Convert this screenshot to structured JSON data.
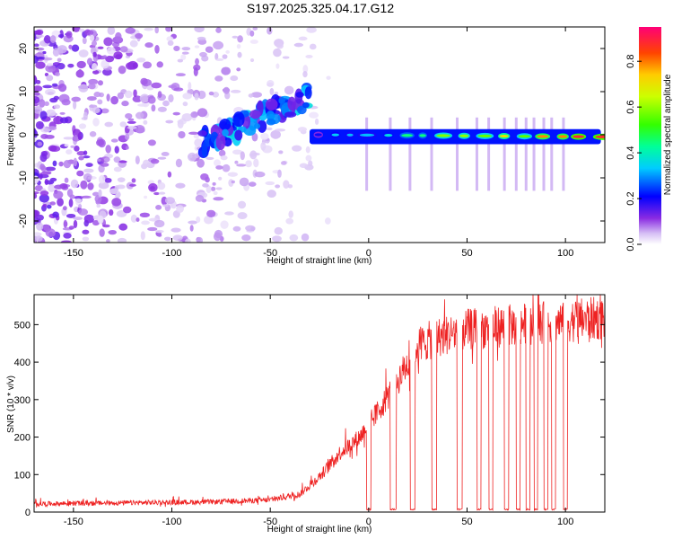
{
  "title": "S197.2025.325.04.17.G12",
  "chart_data": [
    {
      "type": "heatmap",
      "name": "spectrogram",
      "xlabel": "Height of straight line (km)",
      "ylabel": "Frequency (Hz)",
      "xlim": [
        -170,
        120
      ],
      "ylim": [
        -25,
        25
      ],
      "xticks": [
        -150,
        -100,
        -50,
        0,
        50,
        100
      ],
      "yticks": [
        -20,
        -10,
        0,
        10,
        20
      ],
      "colorbar": {
        "label": "Normalized spectral amplitude",
        "range": [
          0,
          0.95
        ],
        "ticks": [
          0.0,
          0.2,
          0.4,
          0.6,
          0.8
        ]
      },
      "tone_segments": [
        {
          "x_start": -85,
          "x_end": -30,
          "freq_start": -2,
          "freq_end": 9,
          "amplitude": 0.25
        },
        {
          "x_start": -30,
          "x_end": 118,
          "freq_start": 0,
          "freq_end": -0.5,
          "amplitude": 0.95
        }
      ],
      "noise_region": {
        "x_start": -170,
        "x_end": -30,
        "freq_min": -25,
        "freq_max": 25,
        "amplitude": 0.1
      }
    },
    {
      "type": "line",
      "name": "snr",
      "xlabel": "Height of straight line (km)",
      "ylabel": "SNR (10 * v/v)",
      "xlim": [
        -170,
        120
      ],
      "ylim": [
        0,
        580
      ],
      "xticks": [
        -150,
        -100,
        -50,
        0,
        50,
        100
      ],
      "yticks": [
        0,
        100,
        200,
        300,
        400,
        500
      ],
      "color": "#ee2222",
      "anchors": [
        {
          "x": -170,
          "y": 20
        },
        {
          "x": -80,
          "y": 25
        },
        {
          "x": -50,
          "y": 30
        },
        {
          "x": -35,
          "y": 45
        },
        {
          "x": -25,
          "y": 90
        },
        {
          "x": -15,
          "y": 150
        },
        {
          "x": -5,
          "y": 190
        },
        {
          "x": 5,
          "y": 260
        },
        {
          "x": 15,
          "y": 340
        },
        {
          "x": 25,
          "y": 430
        },
        {
          "x": 35,
          "y": 450
        },
        {
          "x": 50,
          "y": 470
        },
        {
          "x": 70,
          "y": 480
        },
        {
          "x": 95,
          "y": 490
        },
        {
          "x": 118,
          "y": 500
        }
      ],
      "dropouts": [
        {
          "x": -1,
          "w": 2.2
        },
        {
          "x": 11,
          "w": 3
        },
        {
          "x": 21,
          "w": 2.5
        },
        {
          "x": 32,
          "w": 2.5
        },
        {
          "x": 45,
          "w": 2.5
        },
        {
          "x": 55,
          "w": 2.2
        },
        {
          "x": 61,
          "w": 2.2
        },
        {
          "x": 69,
          "w": 2.2
        },
        {
          "x": 75,
          "w": 2
        },
        {
          "x": 80,
          "w": 2
        },
        {
          "x": 84,
          "w": 2
        },
        {
          "x": 89,
          "w": 2
        },
        {
          "x": 93,
          "w": 2
        },
        {
          "x": 99,
          "w": 2
        }
      ],
      "dropout_level": 5
    }
  ]
}
